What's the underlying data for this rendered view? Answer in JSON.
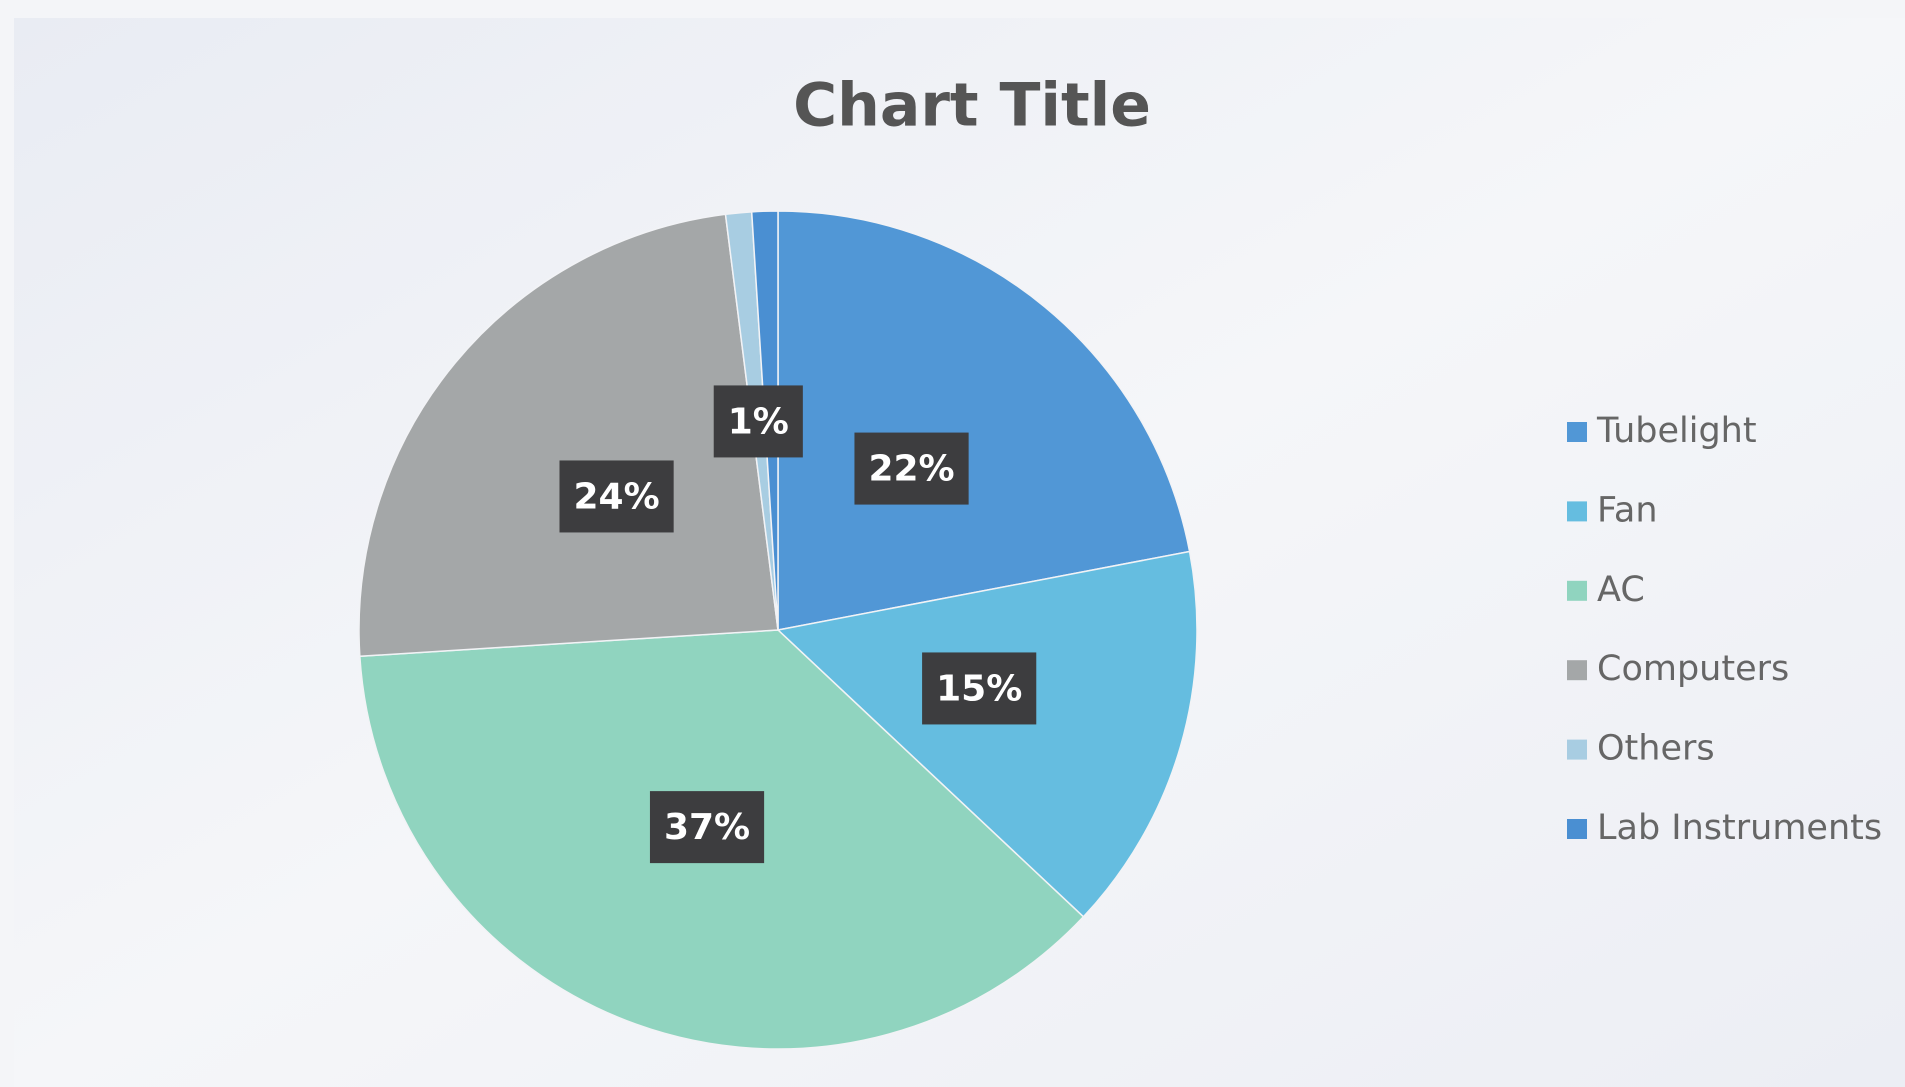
{
  "chart_data": {
    "type": "pie",
    "title": "Chart Title",
    "categories": [
      "Tubelight",
      "Fan",
      "AC",
      "Computers",
      "Others",
      "Lab Instruments"
    ],
    "values": [
      22,
      15,
      37,
      24,
      1,
      1
    ],
    "value_labels": [
      "22%",
      "15%",
      "37%",
      "24%",
      "1%",
      null
    ],
    "colors": [
      "#5197d6",
      "#65bde0",
      "#90d4bf",
      "#a4a7a8",
      "#a8cde2",
      "#4a8fd2"
    ],
    "legend": "right"
  }
}
